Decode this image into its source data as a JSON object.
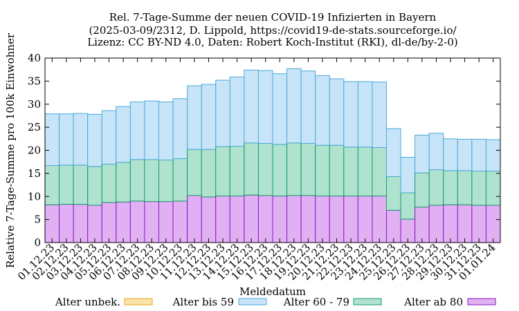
{
  "chart_data": {
    "type": "bar",
    "stacked": true,
    "title_lines": [
      "Rel. 7-Tage-Summe der neuen COVID-19 Infizierten in Bayern",
      "(2025-03-09/2312, D. Lippold, https://covid19-de-stats.sourceforge.io/",
      "Lizenz: CC BY-ND 4.0, Daten: Robert Koch-Institut (RKI), dl-de/by-2-0)"
    ],
    "xlabel": "Meldedatum",
    "ylabel": "Relative 7-Tage-Summe pro 100k Einwohner",
    "ylim": [
      0,
      40
    ],
    "yticks": [
      0,
      5,
      10,
      15,
      20,
      25,
      30,
      35,
      40
    ],
    "grid": false,
    "legend_position": "bottom",
    "categories": [
      "01.12.23",
      "02.12.23",
      "03.12.23",
      "04.12.23",
      "05.12.23",
      "06.12.23",
      "07.12.23",
      "08.12.23",
      "09.12.23",
      "10.12.23",
      "11.12.23",
      "12.12.23",
      "13.12.23",
      "14.12.23",
      "15.12.23",
      "16.12.23",
      "17.12.23",
      "18.12.23",
      "19.12.23",
      "20.12.23",
      "21.12.23",
      "22.12.23",
      "23.12.23",
      "24.12.23",
      "25.12.23",
      "26.12.23",
      "27.12.23",
      "28.12.23",
      "29.12.23",
      "30.12.23",
      "31.12.23",
      "01.01.24"
    ],
    "series": [
      {
        "name": "Alter unbek.",
        "fill": "#fbe3a8",
        "stroke": "#e8a41c",
        "values": [
          0,
          0,
          0,
          0,
          0,
          0,
          0,
          0,
          0,
          0,
          0,
          0,
          0,
          0,
          0,
          0,
          0,
          0,
          0,
          0,
          0,
          0,
          0,
          0,
          0,
          0,
          0,
          0,
          0,
          0,
          0,
          0
        ]
      },
      {
        "name": "Alter ab 80",
        "fill": "#e0b0f2",
        "stroke": "#8a19c4",
        "values": [
          8.2,
          8.3,
          8.3,
          8.1,
          8.7,
          8.8,
          9.0,
          8.9,
          8.9,
          9.0,
          10.2,
          9.9,
          10.1,
          10.1,
          10.3,
          10.2,
          10.1,
          10.2,
          10.2,
          10.1,
          10.1,
          10.1,
          10.1,
          10.1,
          7.0,
          5.1,
          7.7,
          8.1,
          8.2,
          8.2,
          8.1,
          8.1
        ]
      },
      {
        "name": "Alter 60 - 79",
        "fill": "#b0e2d0",
        "stroke": "#149a6c",
        "values": [
          8.5,
          8.5,
          8.5,
          8.4,
          8.3,
          8.6,
          9.0,
          9.1,
          9.0,
          9.2,
          10.0,
          10.3,
          10.7,
          10.8,
          11.3,
          11.3,
          11.2,
          11.4,
          11.3,
          11.0,
          11.0,
          10.6,
          10.6,
          10.5,
          7.3,
          5.7,
          7.4,
          7.7,
          7.4,
          7.4,
          7.4,
          7.4
        ]
      },
      {
        "name": "Alter bis 59",
        "fill": "#c8e4f8",
        "stroke": "#4aaad8",
        "values": [
          11.2,
          11.1,
          11.2,
          11.3,
          11.6,
          12.1,
          12.5,
          12.7,
          12.6,
          13.0,
          13.8,
          14.1,
          14.4,
          15.0,
          15.8,
          15.8,
          15.3,
          16.1,
          15.7,
          15.1,
          14.4,
          14.2,
          14.2,
          14.2,
          10.4,
          7.7,
          8.2,
          7.9,
          6.9,
          6.8,
          6.9,
          6.8
        ]
      }
    ],
    "legend_order": [
      "Alter unbek.",
      "Alter bis 59",
      "Alter 60 - 79",
      "Alter ab 80"
    ]
  }
}
